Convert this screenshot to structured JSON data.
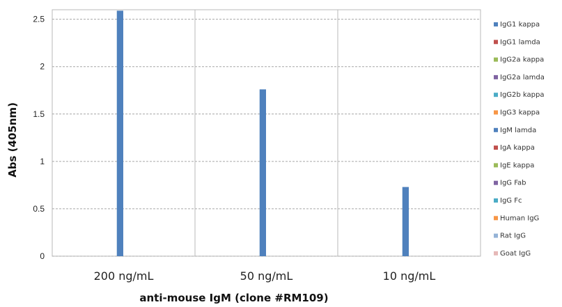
{
  "chart_data": {
    "type": "bar",
    "title": "",
    "xlabel": "anti-mouse IgM (clone #RM109)",
    "ylabel": "Abs (405nm)",
    "categories": [
      "200 ng/mL",
      "50 ng/mL",
      "10 ng/mL"
    ],
    "ylim": [
      0,
      2.6
    ],
    "yticks": [
      0,
      0.5,
      1,
      1.5,
      2,
      2.5
    ],
    "ytick_labels": [
      "0",
      "0.5",
      "1",
      "1.5",
      "2",
      "2.5"
    ],
    "grid": true,
    "legend_position": "right",
    "series": [
      {
        "name": "IgG1 kappa",
        "color": "#4f81bd",
        "values": [
          0,
          0,
          0
        ]
      },
      {
        "name": "IgG1 lamda",
        "color": "#c0504d",
        "values": [
          0,
          0,
          0
        ]
      },
      {
        "name": "IgG2a kappa",
        "color": "#9bbb59",
        "values": [
          0,
          0,
          0
        ]
      },
      {
        "name": "IgG2a lamda",
        "color": "#8064a2",
        "values": [
          0,
          0,
          0
        ]
      },
      {
        "name": "IgG2b kappa",
        "color": "#4bacc6",
        "values": [
          0,
          0,
          0
        ]
      },
      {
        "name": "IgG3 kappa",
        "color": "#f79646",
        "values": [
          0,
          0,
          0
        ]
      },
      {
        "name": "IgM lamda",
        "color": "#4f81bd",
        "values": [
          2.59,
          1.76,
          0.73
        ]
      },
      {
        "name": "IgA kappa",
        "color": "#c0504d",
        "values": [
          0,
          0,
          0
        ]
      },
      {
        "name": "IgE kappa",
        "color": "#9bbb59",
        "values": [
          0,
          0,
          0
        ]
      },
      {
        "name": "IgG Fab",
        "color": "#8064a2",
        "values": [
          0,
          0,
          0
        ]
      },
      {
        "name": "IgG Fc",
        "color": "#4bacc6",
        "values": [
          0,
          0,
          0
        ]
      },
      {
        "name": "Human IgG",
        "color": "#f79646",
        "values": [
          0,
          0,
          0
        ]
      },
      {
        "name": "Rat IgG",
        "color": "#95b3d7",
        "values": [
          0,
          0,
          0
        ]
      },
      {
        "name": "Goat IgG",
        "color": "#e6b9b8",
        "values": [
          0,
          0,
          0
        ]
      }
    ]
  }
}
